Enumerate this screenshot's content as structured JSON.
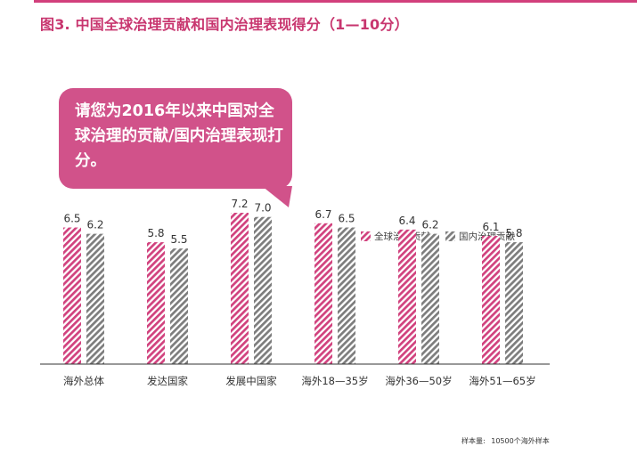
{
  "title": "图3. 中国全球治理贡献和国内治理表现得分（1—10分）",
  "callout": "请您为2016年以来中国对全球治理的贡献/国内治理表现打分。",
  "footnote": {
    "label": "样本量:",
    "value": "10500个海外样本"
  },
  "colors": {
    "accent": "#d23f7c",
    "series1": "#d1427e",
    "series2": "#7d7d7d",
    "callout_bg": "#d1528a"
  },
  "chart_data": {
    "type": "bar",
    "categories": [
      "海外总体",
      "发达国家",
      "发展中国家",
      "海外18—35岁",
      "海外36—50岁",
      "海外51—65岁"
    ],
    "series": [
      {
        "name": "全球治理贡献",
        "values": [
          6.5,
          5.8,
          7.2,
          6.7,
          6.4,
          6.1
        ]
      },
      {
        "name": "国内治理贡献",
        "values": [
          6.2,
          5.5,
          7.0,
          6.5,
          6.2,
          5.8
        ]
      }
    ],
    "data_labels": [
      [
        "6.5",
        "5.8",
        "7.2",
        "6.7",
        "6.4",
        "6.1"
      ],
      [
        "6.2",
        "5.5",
        "7.0",
        "6.5",
        "6.2",
        "5.8"
      ]
    ],
    "legend_position": "top-right",
    "grid": false
  }
}
